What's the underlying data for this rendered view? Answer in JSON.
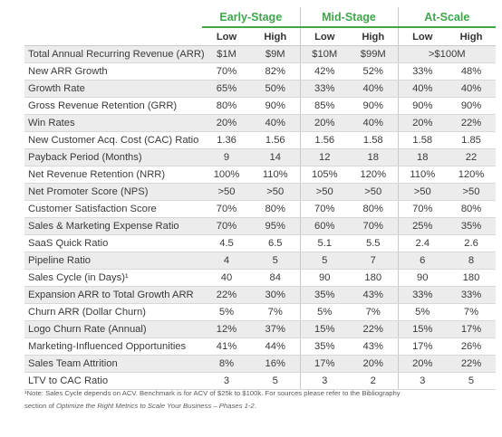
{
  "stages": [
    "Early-Stage",
    "Mid-Stage",
    "At-Scale"
  ],
  "subheaders": [
    "Low",
    "High",
    "Low",
    "High",
    "Low",
    "High"
  ],
  "rows": [
    {
      "metric": "Total Annual Recurring Revenue (ARR)",
      "v": [
        "$1M",
        "$9M",
        "$10M",
        "$99M",
        ">$100M"
      ]
    },
    {
      "metric": "New ARR Growth",
      "v": [
        "70%",
        "82%",
        "42%",
        "52%",
        "33%",
        "48%"
      ]
    },
    {
      "metric": "Growth Rate",
      "v": [
        "65%",
        "50%",
        "33%",
        "40%",
        "40%",
        "40%"
      ]
    },
    {
      "metric": "Gross Revenue Retention (GRR)",
      "v": [
        "80%",
        "90%",
        "85%",
        "90%",
        "90%",
        "90%"
      ]
    },
    {
      "metric": "Win Rates",
      "v": [
        "20%",
        "40%",
        "20%",
        "40%",
        "20%",
        "22%"
      ]
    },
    {
      "metric": "New Customer Acq. Cost (CAC) Ratio",
      "v": [
        "1.36",
        "1.56",
        "1.56",
        "1.58",
        "1.58",
        "1.85"
      ]
    },
    {
      "metric": "Payback Period (Months)",
      "v": [
        "9",
        "14",
        "12",
        "18",
        "18",
        "22"
      ]
    },
    {
      "metric": "Net Revenue Retention (NRR)",
      "v": [
        "100%",
        "110%",
        "105%",
        "120%",
        "110%",
        "120%"
      ]
    },
    {
      "metric": "Net Promoter Score (NPS)",
      "v": [
        ">50",
        ">50",
        ">50",
        ">50",
        ">50",
        ">50"
      ]
    },
    {
      "metric": "Customer Satisfaction Score",
      "v": [
        "70%",
        "80%",
        "70%",
        "80%",
        "70%",
        "80%"
      ]
    },
    {
      "metric": "Sales & Marketing Expense Ratio",
      "v": [
        "70%",
        "95%",
        "60%",
        "70%",
        "25%",
        "35%"
      ]
    },
    {
      "metric": "SaaS Quick Ratio",
      "v": [
        "4.5",
        "6.5",
        "5.1",
        "5.5",
        "2.4",
        "2.6"
      ]
    },
    {
      "metric": "Pipeline Ratio",
      "v": [
        "4",
        "5",
        "5",
        "7",
        "6",
        "8"
      ]
    },
    {
      "metric": "Sales Cycle (in Days)¹",
      "v": [
        "40",
        "84",
        "90",
        "180",
        "90",
        "180"
      ]
    },
    {
      "metric": "Expansion ARR to Total Growth ARR",
      "v": [
        "22%",
        "30%",
        "35%",
        "43%",
        "33%",
        "33%"
      ]
    },
    {
      "metric": "Churn ARR (Dollar Churn)",
      "v": [
        "5%",
        "7%",
        "5%",
        "7%",
        "5%",
        "7%"
      ]
    },
    {
      "metric": "Logo Churn Rate (Annual)",
      "v": [
        "12%",
        "37%",
        "15%",
        "22%",
        "15%",
        "17%"
      ]
    },
    {
      "metric": "Marketing-Influenced Opportunities",
      "v": [
        "41%",
        "44%",
        "35%",
        "43%",
        "17%",
        "26%"
      ]
    },
    {
      "metric": "Sales Team Attrition",
      "v": [
        "8%",
        "16%",
        "17%",
        "20%",
        "20%",
        "22%"
      ]
    },
    {
      "metric": "LTV to CAC Ratio",
      "v": [
        "3",
        "5",
        "3",
        "2",
        "3",
        "5"
      ]
    }
  ],
  "footnote": {
    "line1": "¹Note: Sales Cycle depends on ACV. Benchmark is for ACV of $25k to $100k. For sources please refer to the Bibliography",
    "line2_prefix": "section of ",
    "line2_title": "Optimize the Right Metrics to Scale Your Business – Phases 1-2",
    "line2_suffix": "."
  },
  "colors": {
    "accent": "#3fa64a",
    "stripe": "#ececec"
  }
}
